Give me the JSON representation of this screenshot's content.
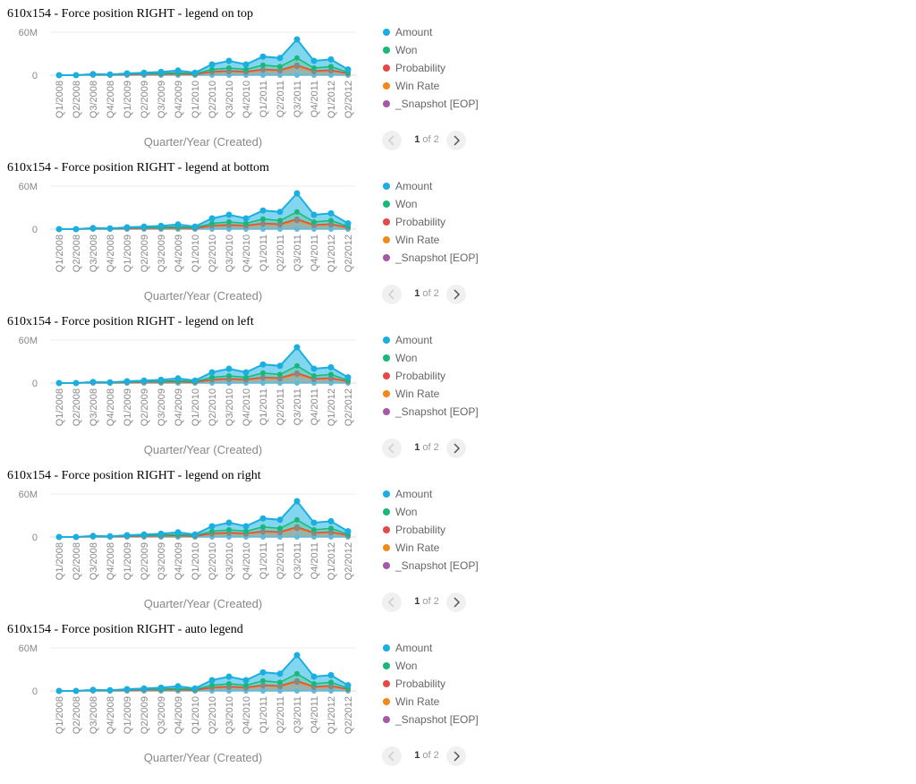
{
  "panels": [
    {
      "title": "610x154 - Force position RIGHT - legend on top"
    },
    {
      "title": "610x154 - Force position RIGHT - legend at bottom"
    },
    {
      "title": "610x154 - Force position RIGHT - legend on left"
    },
    {
      "title": "610x154 - Force position RIGHT - legend on right"
    },
    {
      "title": "610x154 - Force position RIGHT - auto legend"
    }
  ],
  "legend": {
    "items": [
      {
        "label": "Amount",
        "color": "#1aafe0"
      },
      {
        "label": "Won",
        "color": "#1ab77a"
      },
      {
        "label": "Probability",
        "color": "#e04b48"
      },
      {
        "label": "Win Rate",
        "color": "#ef8a1a"
      },
      {
        "label": "_Snapshot [EOP]",
        "color": "#a45aa4"
      }
    ]
  },
  "pager": {
    "current": "1",
    "of_label": "of 2",
    "prev_icon": "chevron-left-icon",
    "next_icon": "chevron-right-icon"
  },
  "chart_data": {
    "type": "area",
    "categories": [
      "Q1/2008",
      "Q2/2008",
      "Q3/2008",
      "Q4/2008",
      "Q1/2009",
      "Q2/2009",
      "Q3/2009",
      "Q4/2009",
      "Q1/2010",
      "Q2/2010",
      "Q3/2010",
      "Q4/2010",
      "Q1/2011",
      "Q2/2011",
      "Q3/2011",
      "Q4/2011",
      "Q1/2012",
      "Q2/2012"
    ],
    "xlabel": "Quarter/Year (Created)",
    "ylabel": "",
    "yticks": [
      "0",
      "60M"
    ],
    "ylim": [
      0,
      60000000
    ],
    "grid": true,
    "legend_position": "right",
    "series": [
      {
        "name": "Amount",
        "color": "#1aafe0",
        "values": [
          0,
          0,
          1500000,
          1000000,
          2500000,
          3500000,
          4500000,
          6500000,
          3500000,
          15000000,
          20000000,
          15000000,
          26000000,
          24000000,
          50000000,
          20000000,
          22000000,
          8000000
        ]
      },
      {
        "name": "Won",
        "color": "#1ab77a",
        "values": [
          0,
          0,
          1000000,
          500000,
          1500000,
          2500000,
          2500000,
          3500000,
          2000000,
          8000000,
          10000000,
          8000000,
          14000000,
          12000000,
          24000000,
          10000000,
          12000000,
          4000000
        ]
      },
      {
        "name": "Probability",
        "color": "#e04b48",
        "values": [
          0,
          0,
          500000,
          300000,
          800000,
          1500000,
          1500000,
          2000000,
          1000000,
          5000000,
          6000000,
          5000000,
          8000000,
          7000000,
          14000000,
          6000000,
          7000000,
          2500000
        ]
      },
      {
        "name": "Win Rate",
        "color": "#ef8a1a",
        "values": [
          0,
          0,
          400000,
          200000,
          600000,
          1200000,
          1200000,
          1500000,
          800000,
          4000000,
          5000000,
          4000000,
          7000000,
          6000000,
          12000000,
          5000000,
          6000000,
          2000000
        ]
      },
      {
        "name": "_Snapshot [EOP]",
        "color": "#a45aa4",
        "values": [
          0,
          0,
          0,
          0,
          0,
          0,
          0,
          0,
          0,
          0,
          0,
          0,
          0,
          0,
          0,
          0,
          0,
          0
        ]
      }
    ]
  }
}
